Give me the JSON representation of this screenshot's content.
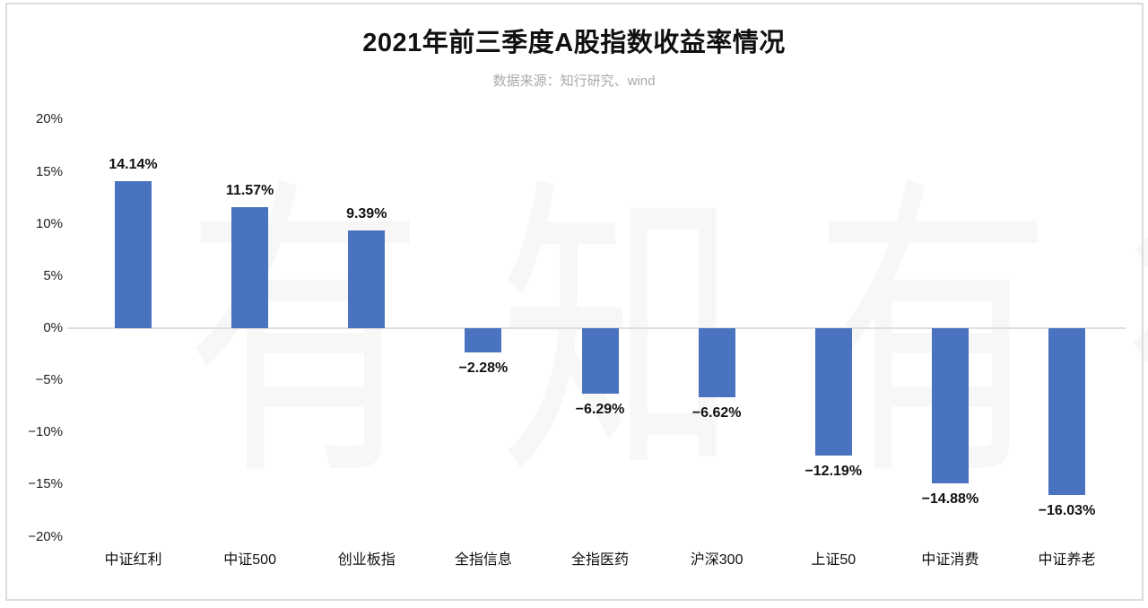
{
  "header": {
    "title": "2021年前三季度A股指数收益率情况",
    "source": "数据来源：知行研究、wind"
  },
  "watermark": {
    "text": "有知有行",
    "chars": [
      "有",
      "知",
      "有",
      "行"
    ],
    "color": "#f7f7f7"
  },
  "chart_data": {
    "type": "bar",
    "title": "2021年前三季度A股指数收益率情况",
    "source_note": "数据来源：知行研究、wind",
    "categories": [
      "中证红利",
      "中证500",
      "创业板指",
      "全指信息",
      "全指医药",
      "沪深300",
      "上证50",
      "中证消费",
      "中证养老"
    ],
    "values": [
      14.14,
      11.57,
      9.39,
      -2.28,
      -6.29,
      -6.62,
      -12.19,
      -14.88,
      -16.03
    ],
    "value_labels": [
      "14.14%",
      "11.57%",
      "9.39%",
      "−2.28%",
      "−6.29%",
      "−6.62%",
      "−12.19%",
      "−14.88%",
      "−16.03%"
    ],
    "ylabel": "",
    "xlabel": "",
    "ylim": [
      -20,
      20
    ],
    "yticks": [
      20,
      15,
      10,
      5,
      0,
      -5,
      -10,
      -15,
      -20
    ],
    "ytick_labels": [
      "20%",
      "15%",
      "10%",
      "5%",
      "0%",
      "−5%",
      "−10%",
      "−15%",
      "−20%"
    ],
    "grid": "zero-line-only",
    "legend": "none",
    "bar_color": "#4A73BF",
    "zero_line_color": "#dfdfdf"
  }
}
